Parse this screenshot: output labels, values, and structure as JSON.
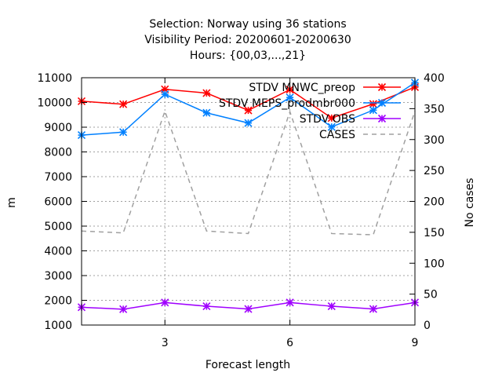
{
  "chart_data": {
    "type": "line",
    "title_lines": [
      "Selection: Norway using    36 stations",
      "Visibility   Period: 20200601-20200630",
      "Hours: {00,03,...,21}"
    ],
    "xlabel": "Forecast length",
    "ylabel": "m",
    "y2label": "No cases",
    "xlim": [
      1,
      9
    ],
    "ylim": [
      1000,
      11000
    ],
    "y2lim": [
      0,
      400
    ],
    "x": [
      1,
      2,
      3,
      4,
      5,
      6,
      7,
      8,
      9
    ],
    "xticks": [
      3,
      6,
      9
    ],
    "yticks": [
      1000,
      2000,
      3000,
      4000,
      5000,
      6000,
      7000,
      8000,
      9000,
      10000,
      11000
    ],
    "y2ticks": [
      0,
      50,
      100,
      150,
      200,
      250,
      300,
      350,
      400
    ],
    "grid": true,
    "legend_position": "top-right",
    "series": [
      {
        "name": "STDV MNWC_preop",
        "color": "#ff0000",
        "marker": "star",
        "dashed": false,
        "axis": "left",
        "values": [
          10050,
          9930,
          10530,
          10380,
          9680,
          10520,
          9370,
          9940,
          10620
        ]
      },
      {
        "name": "STDV MEPS_prodmbr000",
        "color": "#0080ff",
        "marker": "star",
        "dashed": false,
        "axis": "left",
        "values": [
          8680,
          8800,
          10330,
          9580,
          9170,
          10200,
          9010,
          9690,
          10800
        ]
      },
      {
        "name": "STDV OBS",
        "color": "#a000ff",
        "marker": "star",
        "dashed": false,
        "axis": "left",
        "values": [
          1720,
          1640,
          1910,
          1760,
          1650,
          1910,
          1760,
          1650,
          1910
        ]
      },
      {
        "name": "CASES",
        "color": "#a0a0a0",
        "marker": "none",
        "dashed": true,
        "axis": "right",
        "values": [
          152,
          149,
          346,
          152,
          148,
          345,
          148,
          146,
          346
        ]
      }
    ]
  }
}
